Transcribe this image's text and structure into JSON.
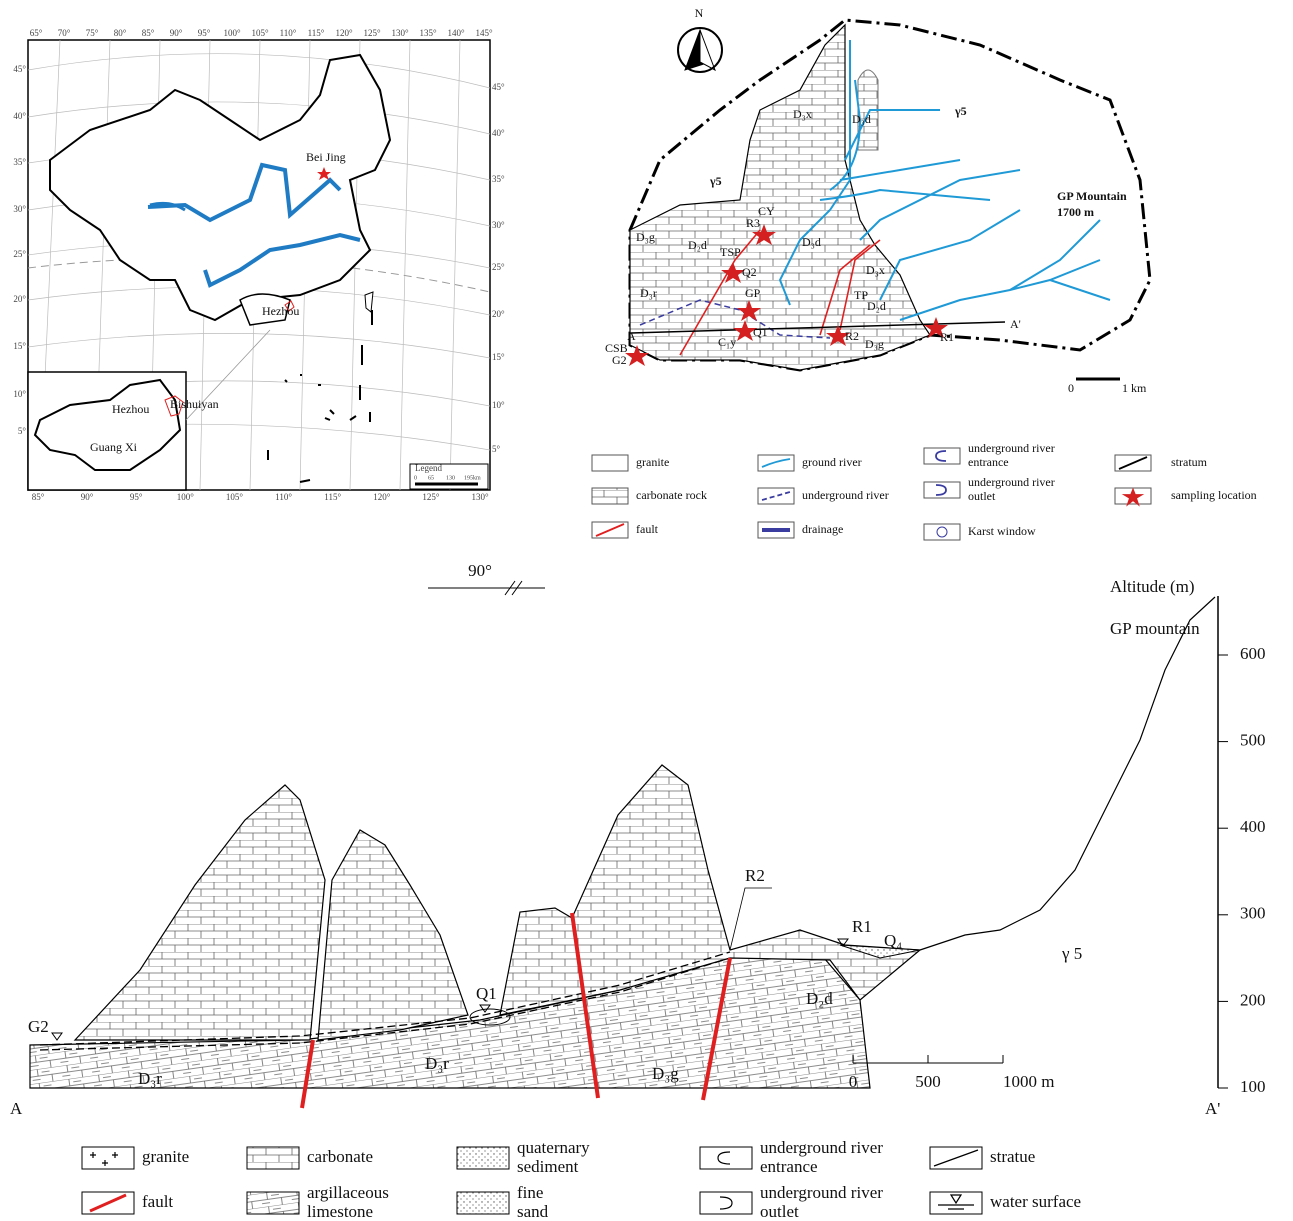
{
  "china_map": {
    "top_lon": [
      "65°",
      "70°",
      "75°",
      "80°",
      "85°",
      "90°",
      "95°",
      "100°",
      "105°",
      "110°",
      "115°",
      "120°",
      "125°",
      "130°",
      "135°",
      "140°",
      "145°"
    ],
    "bottom_lon": [
      "85°",
      "90°",
      "95°",
      "100°",
      "105°",
      "110°",
      "115°",
      "120°",
      "125°",
      "130°"
    ],
    "left_lat": [
      "45°",
      "40°",
      "35°",
      "30°",
      "25°",
      "20°",
      "15°",
      "10°",
      "5°"
    ],
    "right_lat": [
      "45°",
      "40°",
      "35°",
      "30°",
      "25°",
      "20°",
      "15°",
      "10°",
      "5°"
    ],
    "places": [
      "Bei Jing",
      "Hezhou"
    ],
    "inset": [
      "Hezhou",
      "Bishuiyan",
      "Guang Xi"
    ],
    "legend": {
      "title": "Legend",
      "scale": [
        "0",
        "65",
        "130",
        "195km"
      ]
    }
  },
  "study_map": {
    "north": "N",
    "labels": [
      "D₃x",
      "D₃d",
      "γ5",
      "γ5",
      "GP Mountain",
      "1700 m",
      "D₃g",
      "D₂d",
      "D₃d",
      "CY",
      "R3",
      "TSP",
      "Q2",
      "D₃r",
      "GP",
      "D₃x",
      "TP",
      "D₂d",
      "A",
      "A'",
      "Q1",
      "R2",
      "R1",
      "CSB",
      "G2",
      "C₁y",
      "D₃g"
    ],
    "scale": [
      "0",
      "1 km"
    ],
    "legend": [
      "granite",
      "carbonate rock",
      "fault",
      "ground river",
      "underground river",
      "drainage",
      "underground river entrance",
      "underground river outlet",
      "Karst window",
      "stratum",
      "sampling location"
    ]
  },
  "cross_section": {
    "direction": "90°",
    "axis_title": "Altitude (m)",
    "peak": "GP mountain",
    "altitude_ticks": [
      600,
      500,
      400,
      300,
      200,
      100
    ],
    "labels": [
      "γ 5",
      "R2",
      "R1",
      "Q₄",
      "Q1",
      "G2",
      "D₃r",
      "D₃r",
      "D₃g",
      "D₂d"
    ],
    "scale": [
      "0",
      "500",
      "1000 m"
    ],
    "ends": [
      "A",
      "A'"
    ],
    "legend": [
      "granite",
      "fault",
      "carbonate",
      "argillaceous limestone",
      "quaternary sediment",
      "fine sand",
      "underground river entrance",
      "underground river outlet",
      "stratue",
      "water surface"
    ]
  }
}
